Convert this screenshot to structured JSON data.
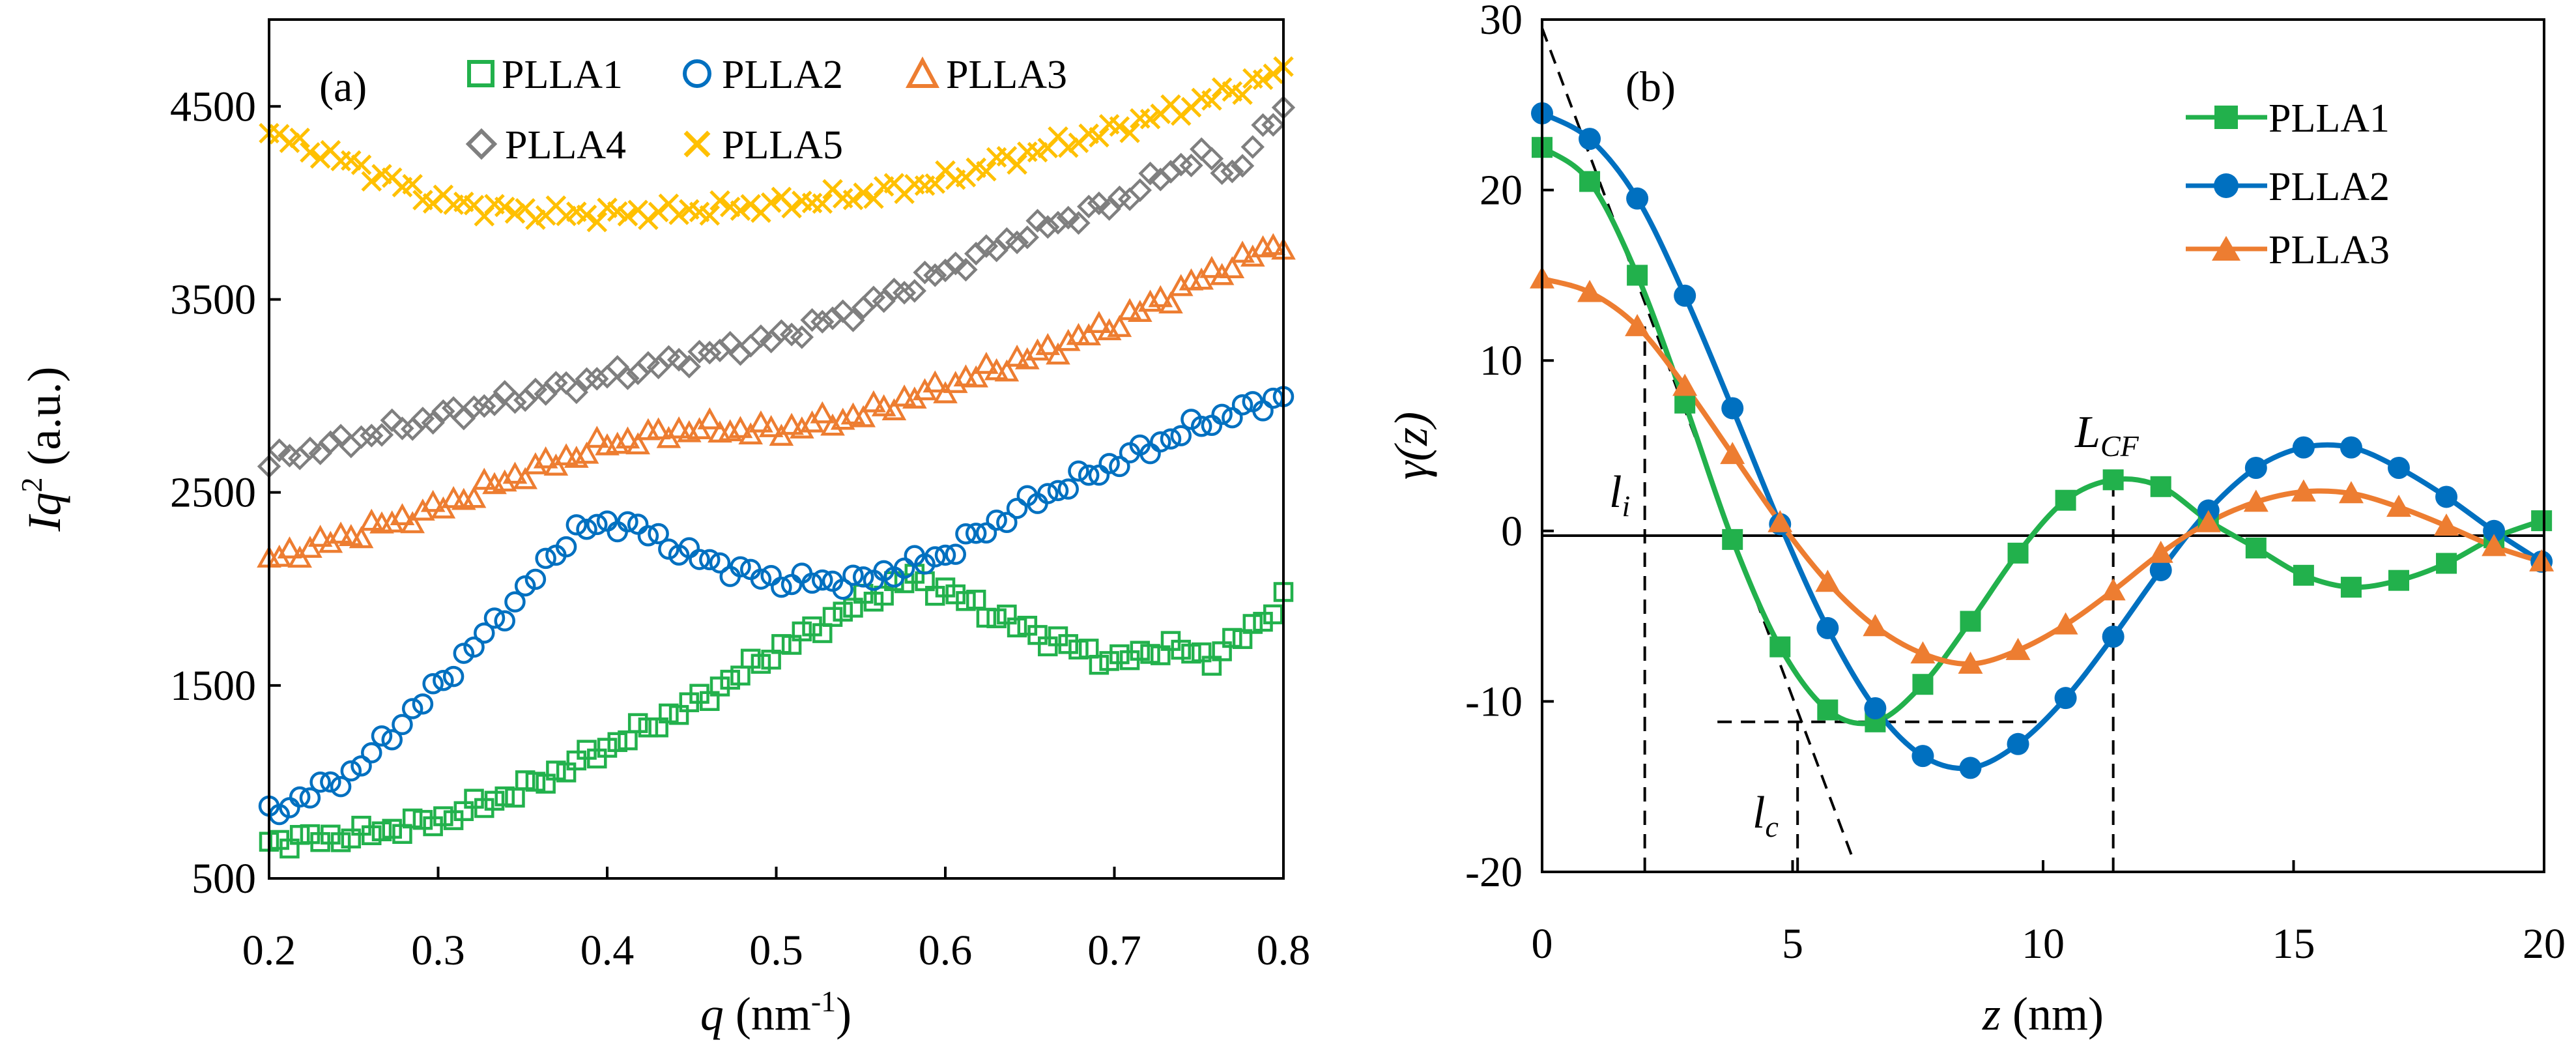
{
  "chart_data": [
    {
      "panel": "(a)",
      "type": "scatter",
      "xlabel_var": "q",
      "xlabel_unit": " (nm",
      "xlabel_sup": "-1",
      "xlabel_close": ")",
      "ylabel_var": "Iq",
      "ylabel_sup": "2",
      "ylabel_unit": " (a.u.)",
      "xlim": [
        0.2,
        0.8
      ],
      "ylim": [
        500,
        4950
      ],
      "xticks": [
        0.2,
        0.3,
        0.4,
        0.5,
        0.6,
        0.7,
        0.8
      ],
      "xtick_labels": [
        "0.2",
        "0.3",
        "0.4",
        "0.5",
        "0.6",
        "0.7",
        "0.8"
      ],
      "yticks": [
        500,
        1500,
        2500,
        3500,
        4500
      ],
      "ytick_labels": [
        "500",
        "1500",
        "2500",
        "3500",
        "4500"
      ],
      "legend_position": "top-right",
      "series": [
        {
          "name": "PLLA1",
          "color": "#22b14c",
          "marker": "open-square",
          "anchors": [
            [
              0.2,
              690
            ],
            [
              0.25,
              720
            ],
            [
              0.3,
              800
            ],
            [
              0.35,
              960
            ],
            [
              0.4,
              1180
            ],
            [
              0.45,
              1400
            ],
            [
              0.5,
              1680
            ],
            [
              0.55,
              1930
            ],
            [
              0.58,
              2060
            ],
            [
              0.6,
              1990
            ],
            [
              0.65,
              1780
            ],
            [
              0.7,
              1620
            ],
            [
              0.73,
              1700
            ],
            [
              0.76,
              1640
            ],
            [
              0.8,
              1940
            ]
          ]
        },
        {
          "name": "PLLA2",
          "color": "#0070c0",
          "marker": "open-circle",
          "anchors": [
            [
              0.2,
              830
            ],
            [
              0.25,
              1050
            ],
            [
              0.3,
              1500
            ],
            [
              0.35,
              1980
            ],
            [
              0.38,
              2300
            ],
            [
              0.41,
              2350
            ],
            [
              0.45,
              2170
            ],
            [
              0.5,
              2040
            ],
            [
              0.55,
              2040
            ],
            [
              0.6,
              2180
            ],
            [
              0.65,
              2450
            ],
            [
              0.7,
              2650
            ],
            [
              0.75,
              2850
            ],
            [
              0.8,
              3000
            ]
          ]
        },
        {
          "name": "PLLA3",
          "color": "#ed7d31",
          "marker": "open-triangle",
          "anchors": [
            [
              0.2,
              2150
            ],
            [
              0.3,
              2420
            ],
            [
              0.35,
              2600
            ],
            [
              0.4,
              2750
            ],
            [
              0.45,
              2830
            ],
            [
              0.5,
              2820
            ],
            [
              0.55,
              2900
            ],
            [
              0.6,
              3050
            ],
            [
              0.65,
              3200
            ],
            [
              0.7,
              3370
            ],
            [
              0.75,
              3600
            ],
            [
              0.8,
              3800
            ]
          ]
        },
        {
          "name": "PLLA4",
          "color": "#7f7f7f",
          "marker": "open-diamond",
          "anchors": [
            [
              0.2,
              2660
            ],
            [
              0.3,
              2890
            ],
            [
              0.35,
              3000
            ],
            [
              0.4,
              3100
            ],
            [
              0.45,
              3200
            ],
            [
              0.5,
              3300
            ],
            [
              0.55,
              3450
            ],
            [
              0.6,
              3650
            ],
            [
              0.65,
              3850
            ],
            [
              0.7,
              4000
            ],
            [
              0.75,
              4250
            ],
            [
              0.77,
              4150
            ],
            [
              0.8,
              4500
            ]
          ]
        },
        {
          "name": "PLLA5",
          "color": "#ffc000",
          "marker": "cross",
          "anchors": [
            [
              0.2,
              4360
            ],
            [
              0.25,
              4200
            ],
            [
              0.3,
              4010
            ],
            [
              0.35,
              3950
            ],
            [
              0.4,
              3940
            ],
            [
              0.45,
              3960
            ],
            [
              0.5,
              3990
            ],
            [
              0.55,
              4040
            ],
            [
              0.6,
              4120
            ],
            [
              0.65,
              4260
            ],
            [
              0.7,
              4380
            ],
            [
              0.75,
              4520
            ],
            [
              0.8,
              4680
            ]
          ]
        }
      ]
    },
    {
      "panel": "(b)",
      "type": "line",
      "xlabel_var": "z",
      "xlabel_unit": " (nm)",
      "ylabel_var": "γ(z)",
      "xlim": [
        0,
        20
      ],
      "ylim": [
        -20,
        30
      ],
      "xticks": [
        0,
        5,
        10,
        15,
        20
      ],
      "xtick_labels": [
        "0",
        "5",
        "10",
        "15",
        "20"
      ],
      "yticks": [
        -20,
        -10,
        0,
        10,
        20,
        30
      ],
      "ytick_labels": [
        "-20",
        "-10",
        "0",
        "10",
        "20",
        "30"
      ],
      "legend_position": "top-right",
      "series": [
        {
          "name": "PLLA1",
          "color": "#22b14c",
          "marker": "filled-square",
          "x": [
            0,
            0.95,
            1.9,
            2.85,
            3.8,
            4.75,
            5.7,
            6.65,
            7.6,
            8.55,
            9.5,
            10.45,
            11.4,
            12.35,
            13.3,
            14.25,
            15.2,
            16.15,
            17.1,
            18.05,
            19.0,
            19.95
          ],
          "y": [
            22.5,
            20.5,
            15.0,
            7.5,
            -0.5,
            -6.8,
            -10.5,
            -11.2,
            -9.0,
            -5.3,
            -1.3,
            1.8,
            3.0,
            2.6,
            0.6,
            -1.0,
            -2.6,
            -3.3,
            -2.9,
            -1.9,
            -0.4,
            0.6
          ]
        },
        {
          "name": "PLLA2",
          "color": "#0070c0",
          "marker": "filled-circle",
          "x": [
            0,
            0.95,
            1.9,
            2.85,
            3.8,
            4.75,
            5.7,
            6.65,
            7.6,
            8.55,
            9.5,
            10.45,
            11.4,
            12.35,
            13.3,
            14.25,
            15.2,
            16.15,
            17.1,
            18.05,
            19.0,
            19.95
          ],
          "y": [
            24.5,
            23.0,
            19.5,
            13.8,
            7.2,
            0.4,
            -5.7,
            -10.4,
            -13.2,
            -13.9,
            -12.5,
            -9.8,
            -6.2,
            -2.3,
            1.2,
            3.7,
            4.9,
            4.9,
            3.7,
            2.0,
            0.0,
            -1.8
          ]
        },
        {
          "name": "PLLA3",
          "color": "#ed7d31",
          "marker": "filled-triangle",
          "x": [
            0,
            0.95,
            1.9,
            2.85,
            3.8,
            4.75,
            5.7,
            6.65,
            7.6,
            8.55,
            9.5,
            10.45,
            11.4,
            12.35,
            13.3,
            14.25,
            15.2,
            16.15,
            17.1,
            18.05,
            19.0,
            19.95
          ],
          "y": [
            14.8,
            14.0,
            12.0,
            8.5,
            4.5,
            0.5,
            -3.0,
            -5.6,
            -7.2,
            -7.8,
            -7.0,
            -5.5,
            -3.5,
            -1.3,
            0.5,
            1.7,
            2.3,
            2.2,
            1.4,
            0.3,
            -0.9,
            -1.8
          ]
        }
      ],
      "annotations": [
        {
          "label": "l",
          "sub": "i"
        },
        {
          "label": "l",
          "sub": "c"
        },
        {
          "label": "L",
          "sub": "CF"
        }
      ],
      "guide_lines": {
        "tangent": [
          [
            0,
            29.5
          ],
          [
            6.2,
            -19.2
          ]
        ],
        "l_i_vertical": [
          [
            2.05,
            -20
          ],
          [
            2.05,
            12.0
          ]
        ],
        "l_c_vertical": [
          [
            5.1,
            -20
          ],
          [
            5.1,
            -11.2
          ]
        ],
        "min_horizontal": [
          [
            3.5,
            -11.2
          ],
          [
            10.0,
            -11.2
          ]
        ],
        "L_CF_vertical": [
          [
            11.4,
            -20
          ],
          [
            11.4,
            3.0
          ]
        ]
      }
    }
  ]
}
